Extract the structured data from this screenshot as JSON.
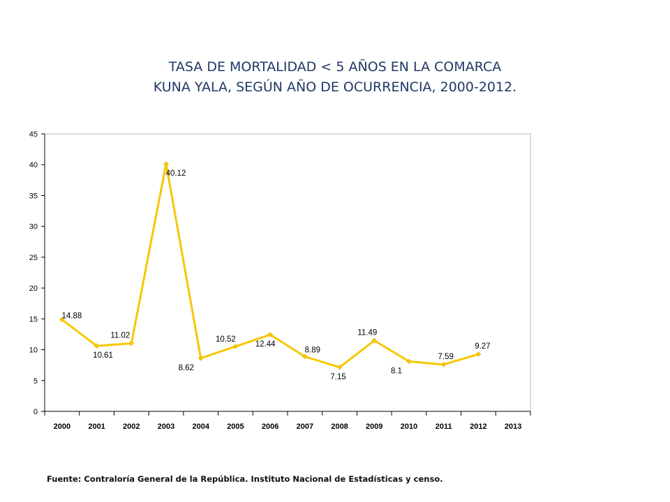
{
  "title": {
    "line1": "TASA DE MORTALIDAD < 5 AÑOS EN LA COMARCA",
    "line2": "KUNA YALA, SEGÚN AÑO DE OCURRENCIA, 2000-2012."
  },
  "source": "Fuente: Contraloría General de la República. Instituto Nacional de Estadísticas y censo.",
  "chart_data": {
    "type": "line",
    "title": "TASA DE MORTALIDAD < 5 AÑOS EN LA COMARCA KUNA YALA, SEGÚN AÑO DE OCURRENCIA, 2000-2012.",
    "categories": [
      "2000",
      "2001",
      "2002",
      "2003",
      "2004",
      "2005",
      "2006",
      "2007",
      "2008",
      "2009",
      "2010",
      "2011",
      "2012",
      "2013"
    ],
    "series": [
      {
        "values": [
          14.88,
          10.61,
          11.02,
          40.12,
          8.62,
          10.52,
          12.44,
          8.89,
          7.15,
          11.49,
          8.1,
          7.59,
          9.27,
          null
        ]
      }
    ],
    "data_labels": [
      "14.88",
      "10.61",
      "11.02",
      "40.12",
      "8.62",
      "10.52",
      "12.44",
      "8.89",
      "7.15",
      "11.49",
      "8.1",
      "7.59",
      "9.27"
    ],
    "yticks": [
      "0",
      "5",
      "10",
      "15",
      "20",
      "25",
      "30",
      "35",
      "40",
      "45"
    ],
    "ylim": [
      0,
      45
    ],
    "grid": false,
    "legend": "none",
    "line_color": "#f5c800",
    "frame_color": "#b8b8b8"
  }
}
